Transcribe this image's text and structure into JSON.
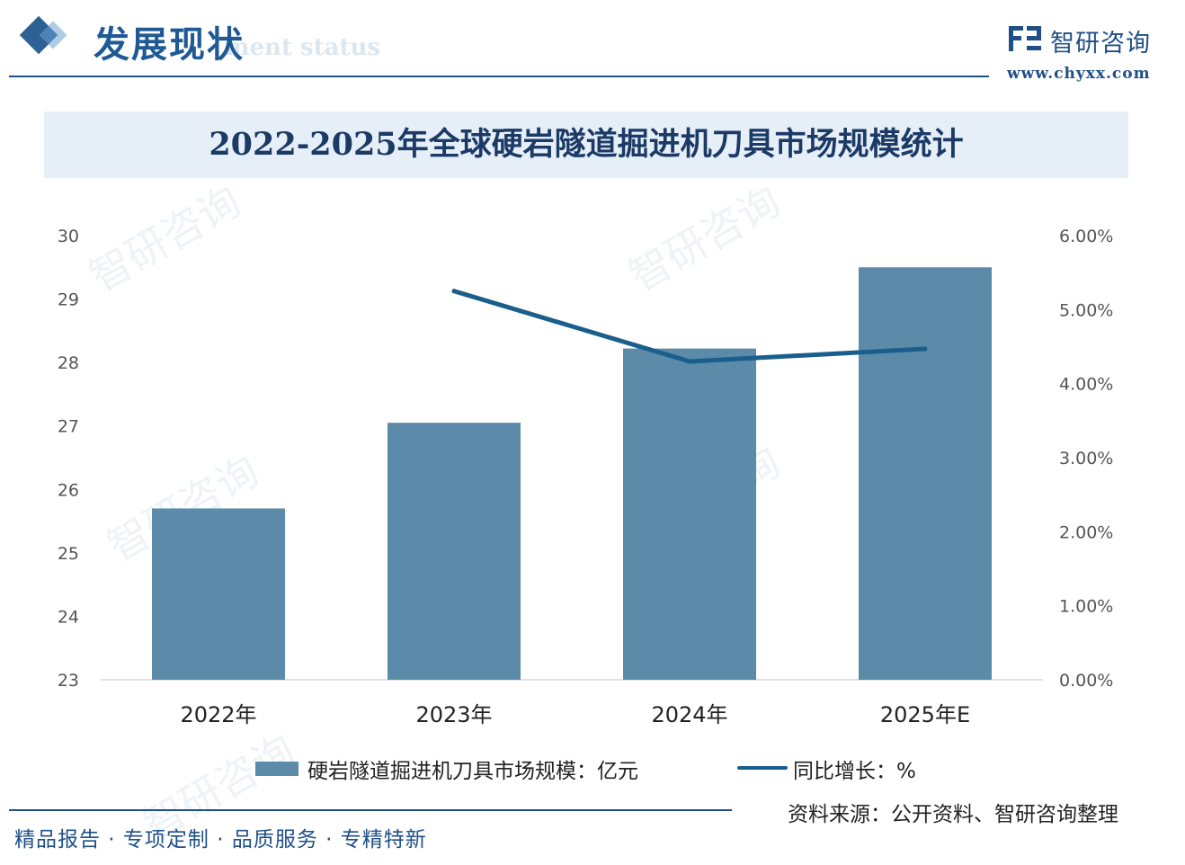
{
  "header": {
    "section_title": "发展现状",
    "section_subtitle": "ment status",
    "brand_name": "智研咨询",
    "brand_url": "www.chyxx.com"
  },
  "chart_data": {
    "type": "bar",
    "title": "2022-2025年全球硬岩隧道掘进机刀具市场规模统计",
    "categories": [
      "2022年",
      "2023年",
      "2024年",
      "2025年E"
    ],
    "series": [
      {
        "name": "硬岩隧道掘进机刀具市场规模：亿元",
        "type": "bar",
        "axis": "left",
        "values": [
          25.7,
          27.05,
          28.22,
          29.5
        ]
      },
      {
        "name": "同比增长：%",
        "type": "line",
        "axis": "right",
        "values": [
          null,
          5.25,
          4.3,
          4.47
        ]
      }
    ],
    "y_left": {
      "min": 23,
      "max": 30,
      "ticks": [
        "23",
        "24",
        "25",
        "26",
        "27",
        "28",
        "29",
        "30"
      ]
    },
    "y_right": {
      "min": 0,
      "max": 6,
      "ticks": [
        "0.00%",
        "1.00%",
        "2.00%",
        "3.00%",
        "4.00%",
        "5.00%",
        "6.00%"
      ]
    },
    "grid": false,
    "legend_position": "bottom",
    "colors": {
      "bar": "#5b8ba9",
      "line": "#1a5f8b"
    }
  },
  "legend": {
    "bar_label": "硬岩隧道掘进机刀具市场规模：亿元",
    "line_label": "同比增长：%"
  },
  "source": "资料来源：公开资料、智研咨询整理",
  "footer": {
    "tagline": "精品报告 · 专项定制 · 品质服务 · 专精特新"
  },
  "watermark": "智研咨询"
}
